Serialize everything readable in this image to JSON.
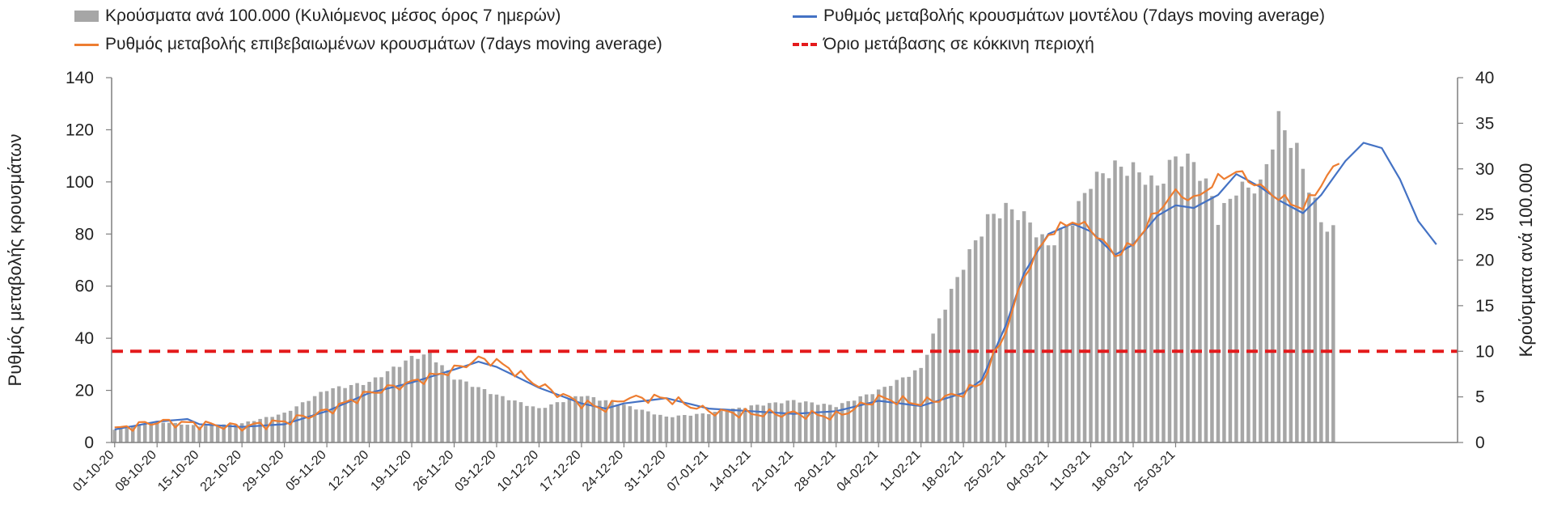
{
  "legend": {
    "bars_label": "Κρούσματα ανά 100.000 (Κυλιόμενος μέσος όρος 7 ημερών)",
    "model_label": "Ρυθμός μεταβολής κρουσμάτων μοντέλου (7days moving average)",
    "confirmed_label": "Ρυθμός μεταβολής επιβεβαιωμένων κρουσμάτων (7days moving average)",
    "threshold_label": "Όριο μετάβασης σε κόκκινη περιοχή"
  },
  "colors": {
    "bars": "#a6a6a6",
    "model": "#4472c4",
    "confirmed": "#ed7d31",
    "threshold": "#e41a1c",
    "axis": "#7f7f7f"
  },
  "chart_data": {
    "type": "bar",
    "ylabel": "Ρυθμός μεταβολής κρουσμάτων",
    "ylabel_right": "Κρούσματα ανά 100.000",
    "ylim": [
      0,
      140
    ],
    "ylim_right": [
      0,
      40
    ],
    "yticks": [
      0,
      20,
      40,
      60,
      80,
      100,
      120,
      140
    ],
    "yticks_right": [
      0,
      5,
      10,
      15,
      20,
      25,
      30,
      35,
      40
    ],
    "x_tick_labels": [
      "01-10-20",
      "08-10-20",
      "15-10-20",
      "22-10-20",
      "29-10-20",
      "05-11-20",
      "12-11-20",
      "19-11-20",
      "26-11-20",
      "03-12-20",
      "10-12-20",
      "17-12-20",
      "24-12-20",
      "31-12-20",
      "07-01-21",
      "14-01-21",
      "21-01-21",
      "28-01-21",
      "04-02-21",
      "11-02-21",
      "18-02-21",
      "25-02-21",
      "04-03-21",
      "11-03-21",
      "18-03-21",
      "25-03-21"
    ],
    "grid": false,
    "legend_position": "top",
    "threshold": 35,
    "bar_anchors": [
      [
        0,
        1.4
      ],
      [
        7,
        2.3
      ],
      [
        14,
        1.8
      ],
      [
        21,
        2.1
      ],
      [
        28,
        3.2
      ],
      [
        35,
        5.8
      ],
      [
        42,
        6.6
      ],
      [
        49,
        9.3
      ],
      [
        52,
        9.7
      ],
      [
        56,
        7.1
      ],
      [
        63,
        5.2
      ],
      [
        70,
        3.7
      ],
      [
        77,
        5.2
      ],
      [
        84,
        4.1
      ],
      [
        91,
        2.8
      ],
      [
        98,
        3.2
      ],
      [
        105,
        4.0
      ],
      [
        112,
        4.6
      ],
      [
        119,
        4.0
      ],
      [
        126,
        5.7
      ],
      [
        133,
        8.1
      ],
      [
        136,
        13.5
      ],
      [
        140,
        19.5
      ],
      [
        144,
        24.5
      ],
      [
        147,
        25.7
      ],
      [
        150,
        24.8
      ],
      [
        154,
        21.5
      ],
      [
        158,
        24.5
      ],
      [
        161,
        28.6
      ],
      [
        165,
        30.2
      ],
      [
        168,
        30.0
      ],
      [
        172,
        28.1
      ],
      [
        175,
        31.3
      ],
      [
        178,
        30.7
      ],
      [
        181,
        27.0
      ],
      [
        182,
        24.5
      ],
      [
        185,
        27.8
      ],
      [
        189,
        28.1
      ],
      [
        192,
        35.4
      ],
      [
        195,
        32.0
      ],
      [
        199,
        24.2
      ],
      [
        201,
        23.2
      ]
    ],
    "model_anchors": [
      [
        0,
        5
      ],
      [
        7,
        8
      ],
      [
        12,
        9
      ],
      [
        14,
        7
      ],
      [
        21,
        6
      ],
      [
        28,
        7
      ],
      [
        35,
        12
      ],
      [
        42,
        19
      ],
      [
        49,
        23
      ],
      [
        56,
        28
      ],
      [
        60,
        31
      ],
      [
        63,
        29
      ],
      [
        70,
        21
      ],
      [
        77,
        15
      ],
      [
        81,
        13
      ],
      [
        84,
        15
      ],
      [
        91,
        17
      ],
      [
        98,
        13
      ],
      [
        105,
        12
      ],
      [
        112,
        11
      ],
      [
        119,
        12
      ],
      [
        126,
        16
      ],
      [
        133,
        14
      ],
      [
        140,
        19
      ],
      [
        143,
        24
      ],
      [
        147,
        45
      ],
      [
        150,
        65
      ],
      [
        154,
        80
      ],
      [
        158,
        84
      ],
      [
        161,
        81
      ],
      [
        165,
        72
      ],
      [
        168,
        76
      ],
      [
        172,
        87
      ],
      [
        175,
        91
      ],
      [
        178,
        90
      ],
      [
        182,
        95
      ],
      [
        185,
        103
      ],
      [
        189,
        98
      ],
      [
        192,
        93
      ],
      [
        196,
        88
      ],
      [
        199,
        95
      ],
      [
        203,
        108
      ],
      [
        206,
        115
      ],
      [
        209,
        113
      ],
      [
        212,
        101
      ],
      [
        215,
        85
      ],
      [
        218,
        76
      ]
    ],
    "confirmed_anchors": [
      [
        0,
        5
      ],
      [
        7,
        8
      ],
      [
        14,
        7
      ],
      [
        21,
        6
      ],
      [
        28,
        8
      ],
      [
        35,
        12
      ],
      [
        42,
        19
      ],
      [
        49,
        23
      ],
      [
        56,
        28
      ],
      [
        60,
        32
      ],
      [
        63,
        31
      ],
      [
        70,
        22
      ],
      [
        77,
        15
      ],
      [
        81,
        13
      ],
      [
        84,
        17
      ],
      [
        91,
        17
      ],
      [
        98,
        12
      ],
      [
        105,
        11
      ],
      [
        112,
        11
      ],
      [
        119,
        10
      ],
      [
        126,
        17
      ],
      [
        133,
        15
      ],
      [
        140,
        19
      ],
      [
        143,
        23
      ],
      [
        147,
        43
      ],
      [
        150,
        64
      ],
      [
        154,
        80
      ],
      [
        158,
        85
      ],
      [
        161,
        82
      ],
      [
        165,
        72
      ],
      [
        168,
        76
      ],
      [
        172,
        89
      ],
      [
        175,
        96
      ],
      [
        178,
        93
      ],
      [
        182,
        101
      ],
      [
        185,
        104
      ],
      [
        189,
        98
      ],
      [
        192,
        94
      ],
      [
        196,
        90
      ],
      [
        199,
        99
      ],
      [
        202,
        108
      ]
    ]
  }
}
